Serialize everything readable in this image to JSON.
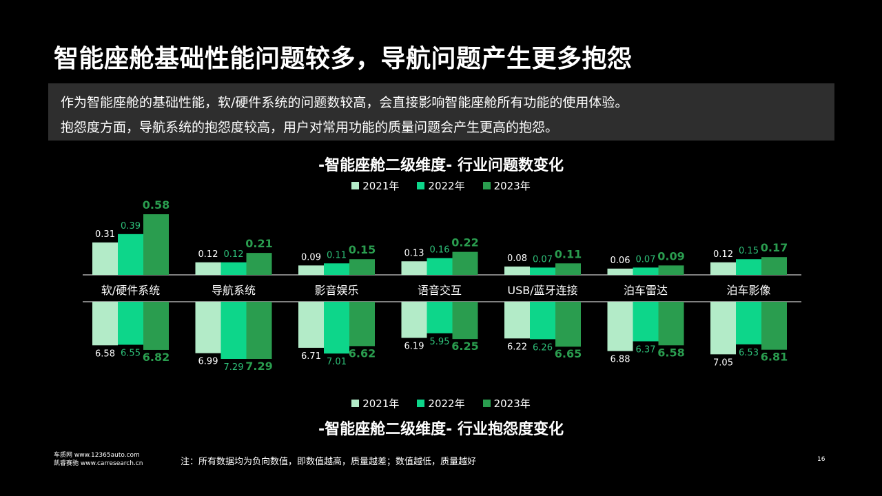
{
  "header": {
    "title": "智能座舱基础性能问题较多，导航问题产生更多抱怨"
  },
  "summary": {
    "line1": "作为智能座舱的基础性能，软/硬件系统的问题数较高，会直接影响智能座舱所有功能的使用体验。",
    "line2": "抱怨度方面，导航系统的抱怨度较高，用户对常用功能的质量问题会产生更高的抱怨。"
  },
  "legend": {
    "items": [
      {
        "label": "2021年",
        "color": "#b3ebc8"
      },
      {
        "label": "2022年",
        "color": "#0dd68a"
      },
      {
        "label": "2023年",
        "color": "#2a9d4f"
      }
    ]
  },
  "chart_data": [
    {
      "type": "bar",
      "title": "-智能座舱二级维度- 行业问题数变化",
      "categories": [
        "软/硬件系统",
        "导航系统",
        "影音娱乐",
        "语音交互",
        "USB/蓝牙连接",
        "泊车雷达",
        "泊车影像"
      ],
      "series": [
        {
          "name": "2021年",
          "values": [
            0.31,
            0.12,
            0.09,
            0.13,
            0.08,
            0.06,
            0.12
          ]
        },
        {
          "name": "2022年",
          "values": [
            0.39,
            0.12,
            0.11,
            0.16,
            0.07,
            0.07,
            0.15
          ]
        },
        {
          "name": "2023年",
          "values": [
            0.58,
            0.21,
            0.15,
            0.22,
            0.11,
            0.09,
            0.17
          ]
        }
      ],
      "direction": "up",
      "ylim": [
        0,
        0.58
      ]
    },
    {
      "type": "bar",
      "title": "-智能座舱二级维度- 行业抱怨度变化",
      "categories": [
        "软/硬件系统",
        "导航系统",
        "影音娱乐",
        "语音交互",
        "USB/蓝牙连接",
        "泊车雷达",
        "泊车影像"
      ],
      "series": [
        {
          "name": "2021年",
          "values": [
            6.58,
            6.99,
            6.71,
            6.19,
            6.22,
            6.88,
            7.05
          ]
        },
        {
          "name": "2022年",
          "values": [
            6.55,
            7.29,
            7.01,
            5.95,
            6.26,
            6.37,
            6.53
          ]
        },
        {
          "name": "2023年",
          "values": [
            6.82,
            7.29,
            6.62,
            6.25,
            6.65,
            6.58,
            6.81
          ]
        }
      ],
      "direction": "down"
    }
  ],
  "footer": {
    "source_line1": "车质网 www.12365auto.com",
    "source_line2": "凯睿赛驰 www.carresearch.cn",
    "note": "注：所有数据均为负向数值，即数值越高，质量越差；数值越低，质量越好",
    "page_number": "16"
  }
}
